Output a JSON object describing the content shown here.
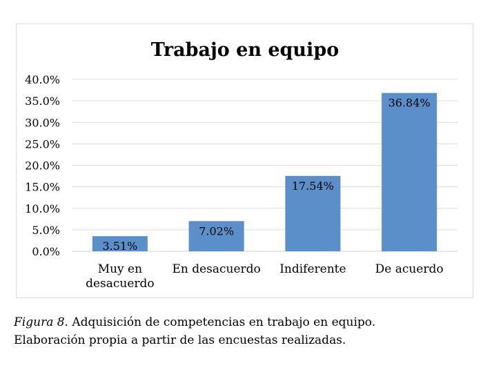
{
  "chart_data": {
    "type": "bar",
    "title": "Trabajo en equipo",
    "xlabel": "",
    "ylabel": "",
    "categories": [
      [
        "Muy en",
        "desacuerdo"
      ],
      [
        "En desacuerdo"
      ],
      [
        "Indiferente"
      ],
      [
        "De acuerdo"
      ]
    ],
    "values": [
      3.51,
      7.02,
      17.54,
      36.84
    ],
    "data_labels": [
      "3.51%",
      "7.02%",
      "17.54%",
      "36.84%"
    ],
    "ylim": [
      0,
      40
    ],
    "yticks": [
      0,
      5,
      10,
      15,
      20,
      25,
      30,
      35,
      40
    ],
    "ytick_labels": [
      "0.0%",
      "5.0%",
      "10.0%",
      "15.0%",
      "20.0%",
      "25.0%",
      "30.0%",
      "35.0%",
      "40.0%"
    ],
    "grid": true,
    "legend": "none",
    "bar_color": "#5b8fc9"
  },
  "caption": {
    "figure_label": "Figura 8.",
    "line1": " Adquisición de competencias en trabajo en equipo.",
    "line2": "Elaboración propia a partir de las encuestas realizadas."
  }
}
